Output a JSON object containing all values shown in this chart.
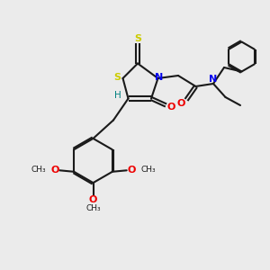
{
  "background_color": "#ebebeb",
  "bond_color": "#1a1a1a",
  "S_color": "#cccc00",
  "N_color": "#0000ee",
  "O_color": "#ee0000",
  "H_color": "#008080",
  "figsize": [
    3.0,
    3.0
  ],
  "dpi": 100,
  "xlim": [
    0,
    10
  ],
  "ylim": [
    0,
    10
  ]
}
